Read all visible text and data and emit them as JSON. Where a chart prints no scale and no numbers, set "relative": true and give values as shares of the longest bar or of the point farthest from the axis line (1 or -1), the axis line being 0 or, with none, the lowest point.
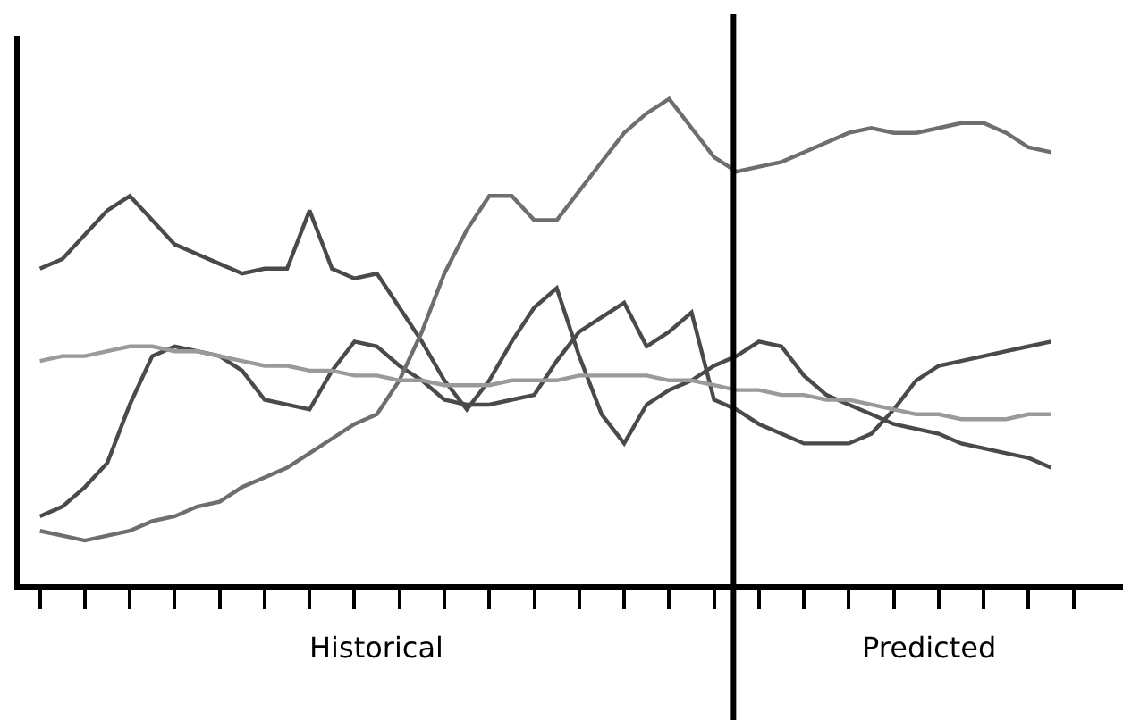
{
  "chart_data": {
    "type": "line",
    "relative": true,
    "line_style": "solid",
    "categories": [
      null,
      null,
      null,
      null,
      null,
      null,
      null,
      null,
      null,
      null,
      null,
      null,
      null,
      null,
      null,
      null,
      null,
      null,
      null,
      null,
      null,
      null,
      null,
      null,
      null,
      null,
      null,
      null,
      null,
      null,
      null,
      null,
      null,
      null,
      null,
      null,
      null,
      null,
      null,
      null,
      null,
      null,
      null,
      null,
      null,
      null
    ],
    "annotations": [
      "Historical",
      "Predicted"
    ],
    "series": [
      {
        "color": "#4a4a4a",
        "values": [
          0.65,
          0.67,
          0.72,
          0.77,
          0.8,
          0.75,
          0.7,
          0.68,
          0.66,
          0.64,
          0.65,
          0.65,
          0.77,
          0.65,
          0.63,
          0.64,
          0.57,
          0.5,
          0.42,
          0.36,
          0.42,
          0.5,
          0.57,
          0.61,
          0.47,
          0.35,
          0.29,
          0.37,
          0.4,
          0.42,
          0.45,
          0.47,
          0.5,
          0.49,
          0.43,
          0.39,
          0.37,
          0.35,
          0.33,
          0.32,
          0.31,
          0.29,
          0.28,
          0.27,
          0.26,
          0.24
        ]
      },
      {
        "color": "#4a4a4a",
        "values": [
          0.14,
          0.16,
          0.2,
          0.25,
          0.37,
          0.47,
          0.49,
          0.48,
          0.47,
          0.44,
          0.38,
          0.37,
          0.36,
          0.44,
          0.5,
          0.49,
          0.45,
          0.42,
          0.38,
          0.37,
          0.37,
          0.38,
          0.39,
          0.46,
          0.52,
          0.55,
          0.58,
          0.49,
          0.52,
          0.56,
          0.38,
          0.36,
          0.33,
          0.31,
          0.29,
          0.29,
          0.29,
          0.31,
          0.36,
          0.42,
          0.45,
          0.46,
          0.47,
          0.48,
          0.49,
          0.5
        ]
      },
      {
        "color": "#6e6e6e",
        "values": [
          0.11,
          0.1,
          0.09,
          0.1,
          0.11,
          0.13,
          0.14,
          0.16,
          0.17,
          0.2,
          0.22,
          0.24,
          0.27,
          0.3,
          0.33,
          0.35,
          0.42,
          0.52,
          0.64,
          0.73,
          0.8,
          0.8,
          0.75,
          0.75,
          0.81,
          0.87,
          0.93,
          0.97,
          1.0,
          0.94,
          0.88,
          0.85,
          0.86,
          0.87,
          0.89,
          0.91,
          0.93,
          0.94,
          0.93,
          0.93,
          0.94,
          0.95,
          0.95,
          0.93,
          0.9,
          0.89
        ]
      },
      {
        "color": "#9a9a9a",
        "values": [
          0.46,
          0.47,
          0.47,
          0.48,
          0.49,
          0.49,
          0.48,
          0.48,
          0.47,
          0.46,
          0.45,
          0.45,
          0.44,
          0.44,
          0.43,
          0.43,
          0.42,
          0.42,
          0.41,
          0.41,
          0.41,
          0.42,
          0.42,
          0.42,
          0.43,
          0.43,
          0.43,
          0.43,
          0.42,
          0.42,
          0.41,
          0.4,
          0.4,
          0.39,
          0.39,
          0.38,
          0.38,
          0.37,
          0.36,
          0.35,
          0.35,
          0.34,
          0.34,
          0.34,
          0.35,
          0.35
        ]
      }
    ]
  }
}
